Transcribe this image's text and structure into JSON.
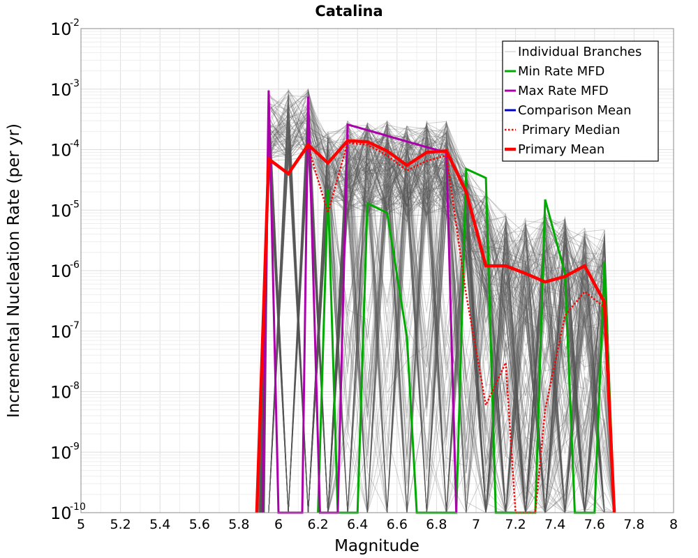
{
  "chart_data": {
    "type": "line",
    "title": "Catalina",
    "xlabel": "Magnitude",
    "ylabel": "Incremental Nucleation Rate (per yr)",
    "xlim": [
      5,
      8
    ],
    "ylim": [
      1e-10,
      0.01
    ],
    "y_scale": "log",
    "grid": true,
    "legend_position": "top-right",
    "x_ticks": [
      "5",
      "5.2",
      "5.4",
      "5.6",
      "5.8",
      "6",
      "6.2",
      "6.4",
      "6.6",
      "6.8",
      "7",
      "7.2",
      "7.4",
      "7.6",
      "7.8",
      "8"
    ],
    "y_ticks": [
      {
        "base": "10",
        "exp": "-10"
      },
      {
        "base": "10",
        "exp": "-9"
      },
      {
        "base": "10",
        "exp": "-8"
      },
      {
        "base": "10",
        "exp": "-7"
      },
      {
        "base": "10",
        "exp": "-6"
      },
      {
        "base": "10",
        "exp": "-5"
      },
      {
        "base": "10",
        "exp": "-4"
      },
      {
        "base": "10",
        "exp": "-3"
      },
      {
        "base": "10",
        "exp": "-2"
      }
    ],
    "series": [
      {
        "name": "Individual Branches",
        "color": "#555555",
        "style": "thin",
        "x": [
          5.95,
          6.05,
          6.15,
          6.25,
          6.35,
          6.45,
          6.55,
          6.65,
          6.75,
          6.85,
          6.95,
          7.05,
          7.15,
          7.25,
          7.35,
          7.45,
          7.55,
          7.65
        ],
        "y": [
          0.001,
          0.001,
          0.001,
          0.0002,
          0.0003,
          0.0003,
          0.0003,
          0.00025,
          0.0003,
          0.0003,
          5e-05,
          2e-05,
          1e-05,
          8e-06,
          1e-05,
          8e-06,
          6e-06,
          5e-06
        ]
      },
      {
        "name": "Min Rate MFD",
        "color": "#00aa00",
        "style": "solid",
        "x": [
          6.2,
          6.25,
          6.3,
          6.4,
          6.45,
          6.55,
          6.65,
          6.7,
          6.9,
          6.95,
          7.05,
          7.1,
          7.3,
          7.35,
          7.45,
          7.5,
          7.6,
          7.65,
          7.7
        ],
        "y": [
          1e-10,
          2.2e-05,
          1e-10,
          1e-10,
          1.3e-05,
          9e-06,
          8e-08,
          1e-10,
          1e-10,
          4.8e-05,
          3.4e-05,
          1e-10,
          1e-10,
          1.5e-05,
          9e-07,
          1e-10,
          1e-10,
          1.4e-06,
          1e-10
        ]
      },
      {
        "name": "Max Rate MFD",
        "color": "#aa00aa",
        "style": "solid",
        "x": [
          5.92,
          5.95,
          6.0,
          6.12,
          6.15,
          6.21,
          6.3,
          6.35,
          6.75,
          6.85,
          6.9
        ],
        "y": [
          1e-10,
          0.00095,
          1e-10,
          1e-10,
          0.00075,
          1e-10,
          1e-10,
          0.00026,
          0.00011,
          9e-05,
          1e-10
        ]
      },
      {
        "name": "Comparison Mean",
        "color": "#0000cc",
        "style": "solid",
        "x": [
          5.89,
          5.95,
          6.05,
          6.15,
          6.25,
          6.35,
          6.45,
          6.55,
          6.65,
          6.75,
          6.85,
          6.95,
          7.05,
          7.15,
          7.25,
          7.35,
          7.45,
          7.55,
          7.65,
          7.7
        ],
        "y": [
          1e-10,
          7e-05,
          4e-05,
          0.00012,
          6e-05,
          0.00014,
          0.000135,
          9.5e-05,
          5.5e-05,
          9e-05,
          9.5e-05,
          2e-05,
          1.2e-06,
          1.2e-06,
          9e-07,
          6.5e-07,
          8e-07,
          1.2e-06,
          3e-07,
          1e-10
        ]
      },
      {
        "name": " Primary Median",
        "color": "#ff0000",
        "style": "dotted",
        "x": [
          5.89,
          5.95,
          6.05,
          6.15,
          6.25,
          6.35,
          6.45,
          6.55,
          6.65,
          6.75,
          6.85,
          6.95,
          7.05,
          7.15,
          7.2,
          7.3,
          7.35,
          7.45,
          7.55,
          7.65,
          7.7
        ],
        "y": [
          1e-10,
          7e-05,
          4e-05,
          0.00011,
          9e-06,
          0.00013,
          0.00012,
          8e-05,
          4.5e-05,
          6.5e-05,
          8e-05,
          4e-07,
          6e-09,
          3e-08,
          1e-10,
          1e-10,
          5e-09,
          1.8e-07,
          4.5e-07,
          2.5e-07,
          1e-10
        ]
      },
      {
        "name": "Primary Mean",
        "color": "#ff0000",
        "style": "thick",
        "x": [
          5.89,
          5.95,
          6.05,
          6.15,
          6.25,
          6.35,
          6.45,
          6.55,
          6.65,
          6.75,
          6.85,
          6.95,
          7.05,
          7.15,
          7.25,
          7.35,
          7.45,
          7.55,
          7.65,
          7.7
        ],
        "y": [
          1e-10,
          7e-05,
          4e-05,
          0.00012,
          6e-05,
          0.00014,
          0.000135,
          9.5e-05,
          5.5e-05,
          9e-05,
          9.5e-05,
          2e-05,
          1.2e-06,
          1.2e-06,
          9e-07,
          6.5e-07,
          8e-07,
          1.2e-06,
          3e-07,
          1e-10
        ]
      }
    ]
  }
}
